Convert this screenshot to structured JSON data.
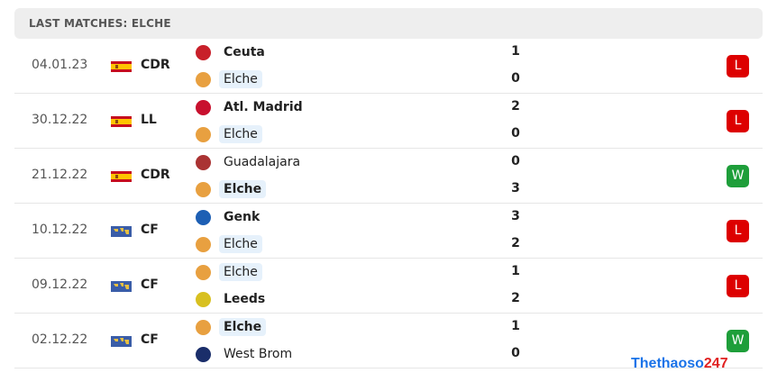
{
  "header": {
    "title": "LAST MATCHES: ELCHE"
  },
  "colors": {
    "loss": "#dd0000",
    "win": "#1e9e3a",
    "highlight": "#e6f1fb"
  },
  "matches": [
    {
      "date": "04.01.23",
      "flag": "spain-flag",
      "competition": "CDR",
      "home": "Ceuta",
      "away": "Elche",
      "home_score": "1",
      "away_score": "0",
      "winner": "home",
      "result": "L"
    },
    {
      "date": "30.12.22",
      "flag": "spain-flag",
      "competition": "LL",
      "home": "Atl. Madrid",
      "away": "Elche",
      "home_score": "2",
      "away_score": "0",
      "winner": "home",
      "result": "L"
    },
    {
      "date": "21.12.22",
      "flag": "spain-flag",
      "competition": "CDR",
      "home": "Guadalajara",
      "away": "Elche",
      "home_score": "0",
      "away_score": "3",
      "winner": "away",
      "result": "W"
    },
    {
      "date": "10.12.22",
      "flag": "world-flag",
      "competition": "CF",
      "home": "Genk",
      "away": "Elche",
      "home_score": "3",
      "away_score": "2",
      "winner": "home",
      "result": "L"
    },
    {
      "date": "09.12.22",
      "flag": "world-flag",
      "competition": "CF",
      "home": "Elche",
      "away": "Leeds",
      "home_score": "1",
      "away_score": "2",
      "winner": "away",
      "result": "L"
    },
    {
      "date": "02.12.22",
      "flag": "world-flag",
      "competition": "CF",
      "home": "Elche",
      "away": "West Brom",
      "home_score": "1",
      "away_score": "0",
      "winner": "home",
      "result": "W"
    }
  ],
  "watermark": {
    "main": "Thethaoso",
    "accent": "247"
  }
}
